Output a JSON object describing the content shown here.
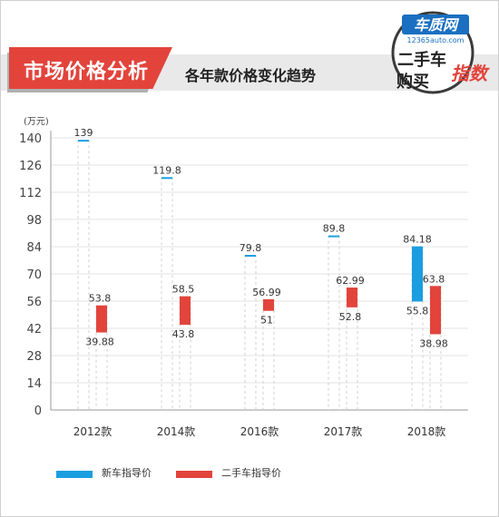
{
  "header": {
    "title": "市场价格分析",
    "subtitle": "各年款价格变化趋势"
  },
  "logo": {
    "brand": "车质网",
    "url_text": "12365auto.com",
    "line1": "二手车",
    "line2": "购买",
    "badge": "指数"
  },
  "colors": {
    "new_car": "#1a9ee0",
    "used_car": "#e2443c",
    "accent": "#e2443c"
  },
  "chart_data": {
    "type": "bar",
    "ylabel": "(万元)",
    "ylim": [
      0,
      140
    ],
    "yticks": [
      0,
      14,
      28,
      42,
      56,
      70,
      84,
      98,
      112,
      126,
      140
    ],
    "grid": true,
    "legend_position": "bottom-left",
    "categories": [
      "2012款",
      "2014款",
      "2016款",
      "2017款",
      "2018款"
    ],
    "series": [
      {
        "name": "新车指导价",
        "ranges": [
          [
            139,
            139
          ],
          [
            119.8,
            119.8
          ],
          [
            79.8,
            79.8
          ],
          [
            89.8,
            89.8
          ],
          [
            55.8,
            84.18
          ]
        ]
      },
      {
        "name": "二手车指导价",
        "ranges": [
          [
            39.88,
            53.8
          ],
          [
            43.8,
            58.5
          ],
          [
            51,
            56.99
          ],
          [
            52.8,
            62.99
          ],
          [
            38.98,
            63.8
          ]
        ]
      }
    ],
    "data_labels": [
      {
        "series": 0,
        "index": 0,
        "text": "139"
      },
      {
        "series": 0,
        "index": 1,
        "text": "119.8"
      },
      {
        "series": 0,
        "index": 2,
        "text": "79.8"
      },
      {
        "series": 0,
        "index": 3,
        "text": "89.8"
      },
      {
        "series": 0,
        "index": 4,
        "text": "84.18",
        "at": "high"
      },
      {
        "series": 0,
        "index": 4,
        "text": "55.8",
        "at": "low"
      },
      {
        "series": 1,
        "index": 0,
        "text": "53.8",
        "at": "high"
      },
      {
        "series": 1,
        "index": 0,
        "text": "39.88",
        "at": "low"
      },
      {
        "series": 1,
        "index": 1,
        "text": "58.5",
        "at": "high"
      },
      {
        "series": 1,
        "index": 1,
        "text": "43.8",
        "at": "low"
      },
      {
        "series": 1,
        "index": 2,
        "text": "56.99",
        "at": "high"
      },
      {
        "series": 1,
        "index": 2,
        "text": "51",
        "at": "low"
      },
      {
        "series": 1,
        "index": 3,
        "text": "62.99",
        "at": "high"
      },
      {
        "series": 1,
        "index": 3,
        "text": "52.8",
        "at": "low"
      },
      {
        "series": 1,
        "index": 4,
        "text": "63.8",
        "at": "high"
      },
      {
        "series": 1,
        "index": 4,
        "text": "38.98",
        "at": "low"
      }
    ]
  }
}
